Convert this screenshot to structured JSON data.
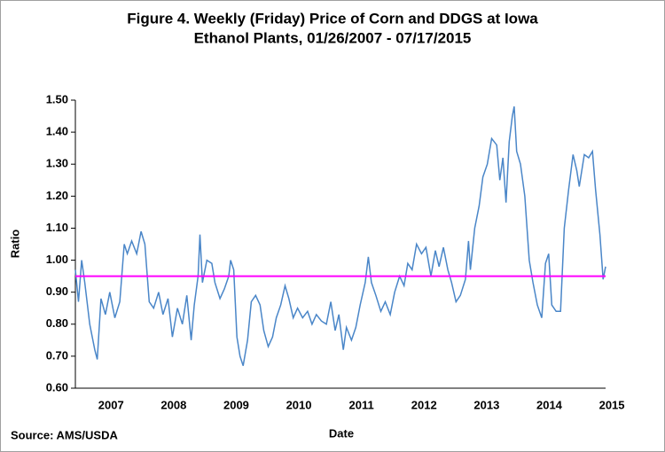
{
  "chart_data": {
    "type": "line",
    "title": [
      "Figure 4. Weekly (Friday) Price of Corn and DDGS at Iowa",
      "Ethanol Plants, 01/26/2007  - 07/17/2015"
    ],
    "x_label": "Date",
    "y_label": "Ratio",
    "source": "Source: AMS/USDA",
    "xlim": [
      2007.07,
      2015.54
    ],
    "xticks": [
      {
        "value": 2007.64,
        "label": "2007"
      },
      {
        "value": 2008.64,
        "label": "2008"
      },
      {
        "value": 2009.64,
        "label": "2009"
      },
      {
        "value": 2010.64,
        "label": "2010"
      },
      {
        "value": 2011.64,
        "label": "2011"
      },
      {
        "value": 2012.64,
        "label": "2012"
      },
      {
        "value": 2013.64,
        "label": "2013"
      },
      {
        "value": 2014.64,
        "label": "2014"
      },
      {
        "value": 2015.64,
        "label": "2015"
      }
    ],
    "ylim": [
      0.6,
      1.5
    ],
    "yticks": [
      {
        "value": 0.6,
        "label": "0.60"
      },
      {
        "value": 0.7,
        "label": "0.70"
      },
      {
        "value": 0.8,
        "label": "0.80"
      },
      {
        "value": 0.9,
        "label": "0.90"
      },
      {
        "value": 1.0,
        "label": "1.00"
      },
      {
        "value": 1.1,
        "label": "1.10"
      },
      {
        "value": 1.2,
        "label": "1.20"
      },
      {
        "value": 1.3,
        "label": "1.30"
      },
      {
        "value": 1.4,
        "label": "1.40"
      },
      {
        "value": 1.5,
        "label": "1.50"
      }
    ],
    "reference_line": {
      "value": 0.95,
      "color": "#ff00ff"
    },
    "x": [
      2007.07,
      2007.12,
      2007.17,
      2007.22,
      2007.3,
      2007.38,
      2007.42,
      2007.48,
      2007.55,
      2007.62,
      2007.7,
      2007.78,
      2007.85,
      2007.9,
      2007.97,
      2008.05,
      2008.12,
      2008.18,
      2008.25,
      2008.32,
      2008.4,
      2008.47,
      2008.55,
      2008.62,
      2008.7,
      2008.78,
      2008.85,
      2008.92,
      2008.97,
      2009.03,
      2009.06,
      2009.1,
      2009.17,
      2009.25,
      2009.3,
      2009.38,
      2009.45,
      2009.52,
      2009.55,
      2009.6,
      2009.65,
      2009.7,
      2009.75,
      2009.82,
      2009.88,
      2009.95,
      2010.02,
      2010.08,
      2010.15,
      2010.22,
      2010.28,
      2010.35,
      2010.42,
      2010.48,
      2010.55,
      2010.62,
      2010.7,
      2010.78,
      2010.85,
      2010.92,
      2011.0,
      2011.08,
      2011.15,
      2011.22,
      2011.28,
      2011.35,
      2011.4,
      2011.48,
      2011.55,
      2011.62,
      2011.7,
      2011.75,
      2011.8,
      2011.87,
      2011.95,
      2012.02,
      2012.1,
      2012.17,
      2012.25,
      2012.32,
      2012.38,
      2012.45,
      2012.52,
      2012.6,
      2012.67,
      2012.75,
      2012.82,
      2012.88,
      2012.95,
      2013.02,
      2013.08,
      2013.15,
      2013.22,
      2013.3,
      2013.35,
      2013.38,
      2013.45,
      2013.52,
      2013.58,
      2013.65,
      2013.72,
      2013.8,
      2013.85,
      2013.9,
      2013.95,
      2014.0,
      2014.05,
      2014.08,
      2014.12,
      2014.18,
      2014.25,
      2014.32,
      2014.38,
      2014.45,
      2014.52,
      2014.58,
      2014.63,
      2014.68,
      2014.75,
      2014.82,
      2014.88,
      2014.95,
      2015.02,
      2015.08,
      2015.12,
      2015.2,
      2015.27,
      2015.33,
      2015.38,
      2015.45,
      2015.5,
      2015.54
    ],
    "series": [
      {
        "name": "Ratio",
        "color": "#4a86c8",
        "values": [
          0.97,
          0.87,
          1.0,
          0.93,
          0.8,
          0.72,
          0.69,
          0.88,
          0.83,
          0.9,
          0.82,
          0.87,
          1.05,
          1.02,
          1.06,
          1.02,
          1.09,
          1.05,
          0.87,
          0.85,
          0.9,
          0.83,
          0.88,
          0.76,
          0.85,
          0.8,
          0.89,
          0.75,
          0.86,
          0.95,
          1.08,
          0.93,
          1.0,
          0.99,
          0.93,
          0.88,
          0.91,
          0.95,
          1.0,
          0.97,
          0.76,
          0.7,
          0.67,
          0.75,
          0.87,
          0.89,
          0.86,
          0.78,
          0.73,
          0.76,
          0.82,
          0.86,
          0.92,
          0.88,
          0.82,
          0.85,
          0.82,
          0.84,
          0.8,
          0.83,
          0.81,
          0.8,
          0.87,
          0.78,
          0.83,
          0.72,
          0.79,
          0.75,
          0.79,
          0.86,
          0.93,
          1.01,
          0.93,
          0.89,
          0.84,
          0.87,
          0.83,
          0.9,
          0.95,
          0.92,
          0.99,
          0.97,
          1.05,
          1.02,
          1.04,
          0.95,
          1.03,
          0.98,
          1.04,
          0.97,
          0.93,
          0.87,
          0.89,
          0.94,
          1.06,
          0.97,
          1.1,
          1.17,
          1.26,
          1.3,
          1.38,
          1.36,
          1.25,
          1.32,
          1.18,
          1.37,
          1.45,
          1.48,
          1.34,
          1.3,
          1.2,
          1.0,
          0.93,
          0.86,
          0.82,
          0.99,
          1.02,
          0.86,
          0.84,
          0.84,
          1.1,
          1.22,
          1.33,
          1.28,
          1.23,
          1.33,
          1.32,
          1.34,
          1.22,
          1.08,
          0.94,
          0.98
        ]
      }
    ]
  }
}
